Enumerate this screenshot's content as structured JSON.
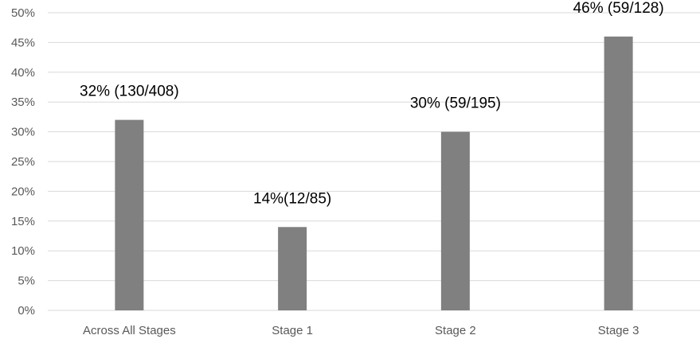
{
  "chart_data": {
    "type": "bar",
    "title": "",
    "xlabel": "",
    "ylabel": "",
    "categories": [
      "Across All Stages",
      "Stage 1",
      "Stage 2",
      "Stage 3"
    ],
    "series": [
      {
        "values": [
          32,
          14,
          30,
          46
        ],
        "data_labels": [
          "32% (130/408)",
          "14%(12/85)",
          "30% (59/195)",
          "46% (59/128)"
        ],
        "color": "#808080"
      }
    ],
    "ylim": [
      0,
      50
    ],
    "yticks": [
      0,
      5,
      10,
      15,
      20,
      25,
      30,
      35,
      40,
      45,
      50
    ],
    "ytick_format": "percent",
    "grid": true,
    "legend": "none"
  }
}
